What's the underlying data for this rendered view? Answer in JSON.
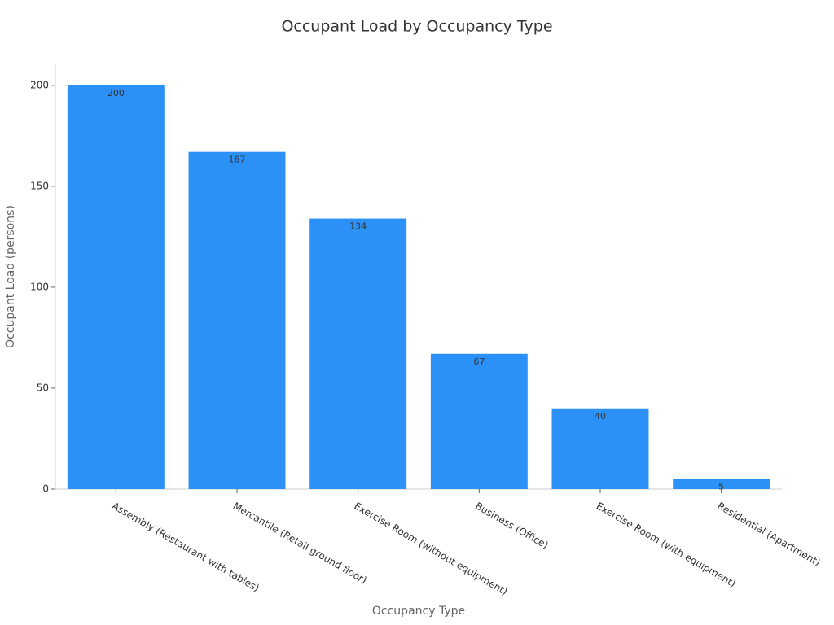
{
  "chart_data": {
    "type": "bar",
    "title": "Occupant Load by Occupancy Type",
    "x_label": "Occupancy Type",
    "y_label": "Occupant Load (persons)",
    "categories": [
      "Assembly (Restaurant with tables)",
      "Mercantile (Retail ground floor)",
      "Exercise Room (without equipment)",
      "Business (Office)",
      "Exercise Room (with equipment)",
      "Residential (Apartment)"
    ],
    "values": [
      200,
      167,
      134,
      67,
      40,
      5
    ],
    "color": "#2b91f7",
    "ylim": [
      0,
      210
    ],
    "yticks": [
      0,
      50,
      100,
      150,
      200
    ],
    "grid": false
  }
}
